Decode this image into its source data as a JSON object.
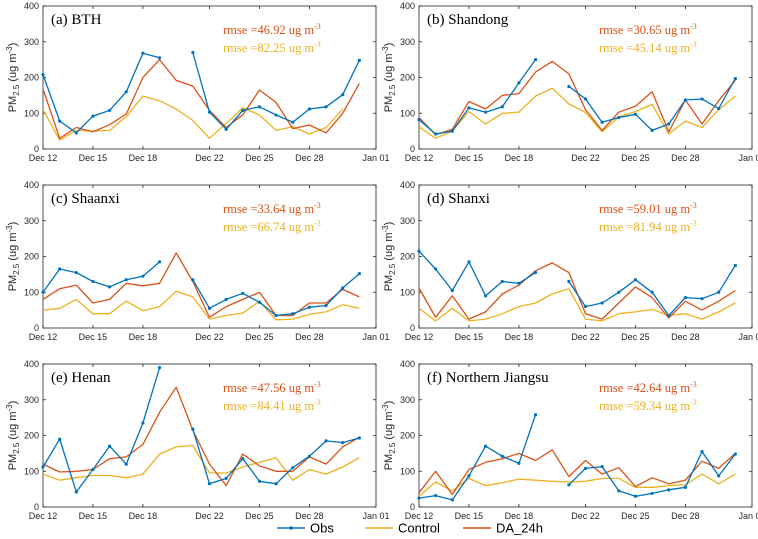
{
  "chart_data": {
    "type": "line",
    "x_tick_labels": [
      "Dec 12",
      "Dec 15",
      "Dec 18",
      "Dec 22",
      "Dec 25",
      "Dec 28",
      "Jan 01"
    ],
    "x_tick_days": [
      12,
      15,
      18,
      22,
      25,
      28,
      32
    ],
    "xlim_days": [
      12,
      32
    ],
    "y_ticks": [
      0,
      100,
      200,
      300,
      400
    ],
    "ylim": [
      0,
      400
    ],
    "ylabel_main": "PM",
    "ylabel_sub": "2.5",
    "ylabel_unit": "(ug m",
    "ylabel_exp": "-3",
    "ylabel_close": ")",
    "colors": {
      "Obs": "#0072BD",
      "Control": "#EDB120",
      "DA_24h": "#D95319"
    },
    "legend": {
      "position": "bottom-center",
      "entries": [
        {
          "name": "Obs",
          "color": "#0072BD",
          "marker": true
        },
        {
          "name": "Control",
          "color": "#EDB120",
          "marker": false
        },
        {
          "name": "DA_24h",
          "color": "#D95319",
          "marker": false
        }
      ]
    },
    "panels": [
      {
        "title": "(a) BTH",
        "rmse_da": "rmse =46.92 ug m",
        "rmse_ctrl": "rmse =82.25 ug m",
        "rmse_exp": "-3",
        "x": [
          12,
          13,
          14,
          15,
          16,
          17,
          18,
          19,
          20,
          21,
          22,
          23,
          24,
          25,
          26,
          27,
          28,
          29,
          30,
          31
        ],
        "series": [
          {
            "name": "Obs",
            "values": [
              208,
              78,
              45,
              92,
              108,
              160,
              268,
              255,
              null,
              270,
              103,
              55,
              108,
              118,
              95,
              75,
              112,
              118,
              152,
              248
            ]
          },
          {
            "name": "Control",
            "values": [
              110,
              25,
              52,
              50,
              52,
              90,
              148,
              135,
              112,
              80,
              30,
              72,
              115,
              95,
              52,
              62,
              42,
              60,
              112,
              null
            ]
          },
          {
            "name": "DA_24h",
            "values": [
              168,
              30,
              60,
              48,
              68,
              98,
              200,
              250,
              192,
              176,
              108,
              60,
              96,
              165,
              130,
              57,
              67,
              45,
              100,
              183
            ]
          }
        ]
      },
      {
        "title": "(b) Shandong",
        "rmse_da": "rmse =30.65 ug m",
        "rmse_ctrl": "rmse =45.14 ug m",
        "rmse_exp": "-3",
        "x": [
          12,
          13,
          14,
          15,
          16,
          17,
          18,
          19,
          20,
          21,
          22,
          23,
          24,
          25,
          26,
          27,
          28,
          29,
          30,
          31
        ],
        "series": [
          {
            "name": "Obs",
            "values": [
              82,
              42,
              50,
              115,
              103,
              118,
              185,
              250,
              null,
              175,
              140,
              75,
              88,
              97,
              52,
              70,
              137,
              140,
              113,
              197
            ]
          },
          {
            "name": "Control",
            "values": [
              62,
              30,
              50,
              105,
              70,
              100,
              103,
              148,
              170,
              126,
              102,
              48,
              90,
              105,
              125,
              42,
              78,
              60,
              110,
              148
            ]
          },
          {
            "name": "DA_24h",
            "values": [
              88,
              40,
              55,
              133,
              112,
              150,
              155,
              215,
              245,
              210,
              110,
              52,
              103,
              120,
              160,
              48,
              137,
              70,
              135,
              192
            ]
          }
        ]
      },
      {
        "title": "(c) Shaanxi",
        "rmse_da": "rmse =33.64 ug m",
        "rmse_ctrl": "rmse =66.74 ug m",
        "rmse_exp": "-3",
        "x": [
          12,
          13,
          14,
          15,
          16,
          17,
          18,
          19,
          20,
          21,
          22,
          23,
          24,
          25,
          26,
          27,
          28,
          29,
          30,
          31
        ],
        "series": [
          {
            "name": "Obs",
            "values": [
              100,
              165,
              155,
              130,
              115,
              135,
              145,
              185,
              null,
              135,
              55,
              80,
              97,
              72,
              35,
              40,
              58,
              63,
              112,
              152
            ]
          },
          {
            "name": "Control",
            "values": [
              50,
              55,
              80,
              40,
              40,
              75,
              48,
              60,
              103,
              87,
              25,
              35,
              42,
              75,
              23,
              25,
              38,
              45,
              65,
              55
            ]
          },
          {
            "name": "DA_24h",
            "values": [
              80,
              110,
              120,
              70,
              80,
              125,
              118,
              125,
              210,
              130,
              30,
              60,
              80,
              100,
              35,
              35,
              70,
              70,
              108,
              87
            ]
          }
        ]
      },
      {
        "title": "(d) Shanxi",
        "rmse_da": "rmse =59.01 ug m",
        "rmse_ctrl": "rmse =81.94 ug m",
        "rmse_exp": "-3",
        "x": [
          12,
          13,
          14,
          15,
          16,
          17,
          18,
          19,
          20,
          21,
          22,
          23,
          24,
          25,
          26,
          27,
          28,
          29,
          30,
          31
        ],
        "series": [
          {
            "name": "Obs",
            "values": [
              215,
              165,
              105,
              185,
              90,
              130,
              125,
              155,
              null,
              130,
              60,
              70,
              100,
              135,
              100,
              35,
              85,
              82,
              100,
              175
            ]
          },
          {
            "name": "Control",
            "values": [
              55,
              20,
              55,
              20,
              25,
              40,
              60,
              70,
              95,
              110,
              25,
              20,
              40,
              45,
              52,
              35,
              40,
              25,
              45,
              70
            ]
          },
          {
            "name": "DA_24h",
            "values": [
              112,
              30,
              90,
              25,
              45,
              95,
              120,
              160,
              182,
              155,
              40,
              25,
              70,
              115,
              85,
              28,
              75,
              50,
              75,
              105
            ]
          }
        ]
      },
      {
        "title": "(e) Henan",
        "rmse_da": "rmse =47.56 ug m",
        "rmse_ctrl": "rmse =84.41 ug m",
        "rmse_exp": "-3",
        "x": [
          12,
          13,
          14,
          15,
          16,
          17,
          18,
          19,
          20,
          21,
          22,
          23,
          24,
          25,
          26,
          27,
          28,
          29,
          30,
          31
        ],
        "series": [
          {
            "name": "Obs",
            "values": [
              112,
              190,
              42,
              105,
              170,
              120,
              235,
              390,
              null,
              218,
              65,
              80,
              135,
              72,
              65,
              110,
              142,
              185,
              180,
              193
            ]
          },
          {
            "name": "Control",
            "values": [
              92,
              75,
              82,
              88,
              88,
              82,
              92,
              148,
              168,
              172,
              95,
              95,
              112,
              125,
              138,
              75,
              105,
              92,
              112,
              138
            ]
          },
          {
            "name": "DA_24h",
            "values": [
              120,
              98,
              100,
              105,
              135,
              140,
              175,
              265,
              335,
              215,
              120,
              60,
              148,
              115,
              100,
              100,
              140,
              120,
              168,
              195
            ]
          }
        ]
      },
      {
        "title": "(f) Northern Jiangsu",
        "rmse_da": "rmse =42.64 ug m",
        "rmse_ctrl": "rmse =59.34 ug m",
        "rmse_exp": "-3",
        "x": [
          12,
          13,
          14,
          15,
          16,
          17,
          18,
          19,
          20,
          21,
          22,
          23,
          24,
          25,
          26,
          27,
          28,
          29,
          30,
          31
        ],
        "series": [
          {
            "name": "Obs",
            "values": [
              25,
              32,
              20,
              87,
              170,
              142,
              122,
              258,
              null,
              62,
              108,
              113,
              45,
              30,
              38,
              48,
              55,
              155,
              87,
              148
            ]
          },
          {
            "name": "Control",
            "values": [
              30,
              70,
              45,
              80,
              60,
              68,
              78,
              75,
              72,
              70,
              72,
              80,
              80,
              55,
              55,
              60,
              62,
              92,
              65,
              92
            ]
          },
          {
            "name": "DA_24h",
            "values": [
              40,
              100,
              35,
              105,
              125,
              135,
              150,
              130,
              160,
              85,
              130,
              92,
              110,
              57,
              82,
              65,
              75,
              128,
              108,
              150
            ]
          }
        ]
      }
    ]
  }
}
